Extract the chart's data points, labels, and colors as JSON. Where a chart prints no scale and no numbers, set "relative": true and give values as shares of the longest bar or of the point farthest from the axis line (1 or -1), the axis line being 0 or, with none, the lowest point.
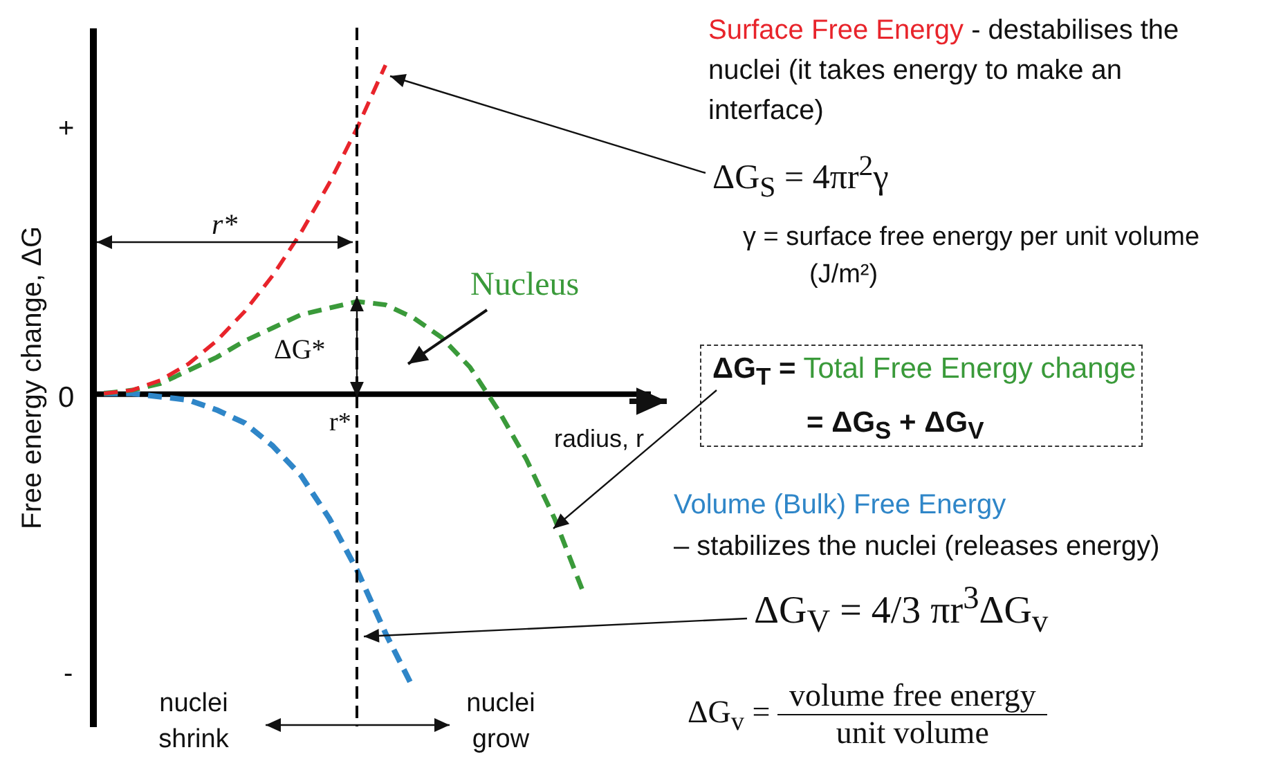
{
  "chart_data": {
    "type": "line",
    "relative": true,
    "xlabel": "radius, r",
    "ylabel": "Free energy change, ΔG",
    "categories": [
      null,
      null,
      null,
      null,
      null,
      null,
      null,
      null,
      null,
      null,
      null,
      null,
      null,
      null,
      null,
      null,
      null,
      null
    ],
    "series": [
      {
        "color": "#e8242b",
        "values": [
          0,
          0.01,
          0.04,
          0.09,
          0.16,
          0.25,
          0.36,
          0.49,
          0.64,
          0.81,
          1.0,
          null,
          null,
          null,
          null,
          null,
          null,
          null
        ]
      },
      {
        "color": "#3a9a3a",
        "values": [
          0,
          0.01,
          0.03,
          0.07,
          0.11,
          0.16,
          0.2,
          0.24,
          0.26,
          0.28,
          0.27,
          0.23,
          0.17,
          0.08,
          -0.05,
          -0.2,
          -0.38,
          -0.6
        ]
      },
      {
        "color": "#2f86c8",
        "values": [
          0,
          0.0,
          -0.01,
          -0.02,
          -0.05,
          -0.09,
          -0.16,
          -0.25,
          -0.38,
          -0.54,
          -0.73,
          -0.9,
          null,
          null,
          null,
          null,
          null,
          null
        ]
      }
    ],
    "line_style": "dashed",
    "annotations": [
      "Surface Free Energy",
      "- destabilises the nuclei (it takes energy to make an interface)",
      "ΔG$_{S}$ = 4πr$^{2}$γ",
      "γ = surface free energy per unit volume (J/m²)",
      "Nucleus",
      "ΔG$_{T}$ =",
      "Total Free Energy change",
      "= ΔG$_{S}$ + ΔG$_{V}$",
      "Volume (Bulk) Free Energy",
      "– stabilizes the nuclei (releases energy)",
      "ΔG$_{V}$ = 4/3 πr$^{3}$ΔG$_{v}$",
      "ΔG$_{v}$ =",
      "volume free energy",
      "unit volume",
      "ΔG*",
      "r*",
      "nuclei shrink",
      "nuclei grow",
      "r*",
      "+",
      "0",
      "-"
    ]
  }
}
